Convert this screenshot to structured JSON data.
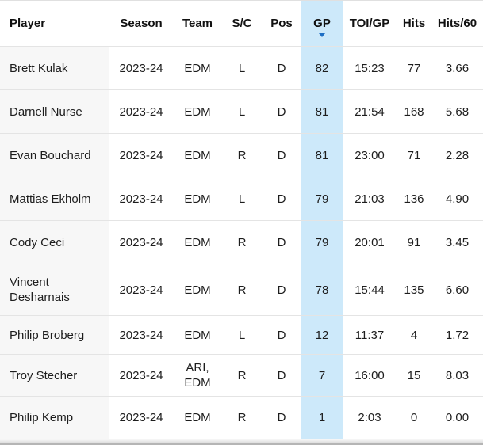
{
  "table": {
    "columns": [
      {
        "label": "Player"
      },
      {
        "label": "Season"
      },
      {
        "label": "Team"
      },
      {
        "label": "S/C"
      },
      {
        "label": "Pos"
      },
      {
        "label": "GP",
        "sort": "desc"
      },
      {
        "label": "TOI/GP"
      },
      {
        "label": "Hits"
      },
      {
        "label": "Hits/60"
      }
    ],
    "rows": [
      {
        "player": "Brett Kulak",
        "season": "2023-24",
        "team": "EDM",
        "sc": "L",
        "pos": "D",
        "gp": "82",
        "toi_gp": "15:23",
        "hits": "77",
        "hits_60": "3.66"
      },
      {
        "player": "Darnell Nurse",
        "season": "2023-24",
        "team": "EDM",
        "sc": "L",
        "pos": "D",
        "gp": "81",
        "toi_gp": "21:54",
        "hits": "168",
        "hits_60": "5.68"
      },
      {
        "player": "Evan Bouchard",
        "season": "2023-24",
        "team": "EDM",
        "sc": "R",
        "pos": "D",
        "gp": "81",
        "toi_gp": "23:00",
        "hits": "71",
        "hits_60": "2.28"
      },
      {
        "player": "Mattias Ekholm",
        "season": "2023-24",
        "team": "EDM",
        "sc": "L",
        "pos": "D",
        "gp": "79",
        "toi_gp": "21:03",
        "hits": "136",
        "hits_60": "4.90"
      },
      {
        "player": "Cody Ceci",
        "season": "2023-24",
        "team": "EDM",
        "sc": "R",
        "pos": "D",
        "gp": "79",
        "toi_gp": "20:01",
        "hits": "91",
        "hits_60": "3.45"
      },
      {
        "player": "Vincent Desharnais",
        "season": "2023-24",
        "team": "EDM",
        "sc": "R",
        "pos": "D",
        "gp": "78",
        "toi_gp": "15:44",
        "hits": "135",
        "hits_60": "6.60"
      },
      {
        "player": "Philip Broberg",
        "season": "2023-24",
        "team": "EDM",
        "sc": "L",
        "pos": "D",
        "gp": "12",
        "toi_gp": "11:37",
        "hits": "4",
        "hits_60": "1.72"
      },
      {
        "player": "Troy Stecher",
        "season": "2023-24",
        "team": "ARI, EDM",
        "sc": "R",
        "pos": "D",
        "gp": "7",
        "toi_gp": "16:00",
        "hits": "15",
        "hits_60": "8.03"
      },
      {
        "player": "Philip Kemp",
        "season": "2023-24",
        "team": "EDM",
        "sc": "R",
        "pos": "D",
        "gp": "1",
        "toi_gp": "2:03",
        "hits": "0",
        "hits_60": "0.00"
      }
    ]
  },
  "colors": {
    "gp_highlight": "#cde9fa",
    "sort_caret": "#1f6fc4",
    "row_border": "#e4e4e4",
    "column_divider": "#d0d0d0",
    "player_col_bg": "#f7f7f7",
    "header_text": "#111111",
    "body_text": "#1d1d1d",
    "bottom_line": "#b5b5b5"
  }
}
